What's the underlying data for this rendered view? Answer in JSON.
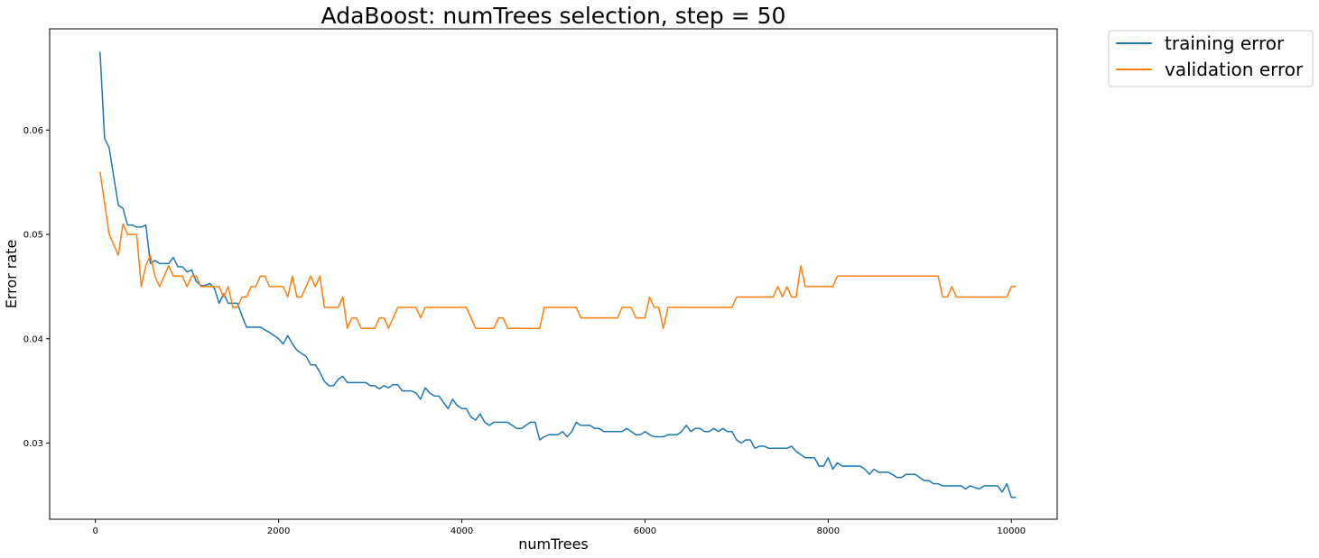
{
  "chart_data": {
    "type": "line",
    "title": "AdaBoost: numTrees selection, step = 50",
    "xlabel": "numTrees",
    "ylabel": "Error rate",
    "xlim": [
      -500,
      10500
    ],
    "ylim": [
      0.0227,
      0.0697
    ],
    "xticks": [
      0,
      2000,
      4000,
      6000,
      8000,
      10000
    ],
    "yticks": [
      0.03,
      0.04,
      0.05,
      0.06
    ],
    "xtick_labels": [
      "0",
      "2000",
      "4000",
      "6000",
      "8000",
      "10000"
    ],
    "ytick_labels": [
      "0.03",
      "0.04",
      "0.05",
      "0.06"
    ],
    "grid": false,
    "legend_position": "outside-top-right",
    "series": [
      {
        "name": "training error",
        "color": "#1f77b4",
        "points": [
          [
            50,
            0.0675
          ],
          [
            100,
            0.0592
          ],
          [
            150,
            0.0583
          ],
          [
            200,
            0.0555
          ],
          [
            250,
            0.0528
          ],
          [
            300,
            0.0525
          ],
          [
            350,
            0.0509
          ],
          [
            400,
            0.0509
          ],
          [
            450,
            0.0507
          ],
          [
            500,
            0.0507
          ],
          [
            550,
            0.0509
          ],
          [
            600,
            0.0472
          ],
          [
            650,
            0.0475
          ],
          [
            700,
            0.0472
          ],
          [
            800,
            0.0472
          ],
          [
            850,
            0.0478
          ],
          [
            900,
            0.0469
          ],
          [
            950,
            0.0469
          ],
          [
            1000,
            0.0464
          ],
          [
            1050,
            0.0466
          ],
          [
            1100,
            0.0455
          ],
          [
            1150,
            0.0451
          ],
          [
            1200,
            0.0451
          ],
          [
            1250,
            0.0453
          ],
          [
            1300,
            0.0448
          ],
          [
            1350,
            0.0434
          ],
          [
            1400,
            0.0443
          ],
          [
            1450,
            0.0434
          ],
          [
            1500,
            0.0434
          ],
          [
            1550,
            0.0434
          ],
          [
            1600,
            0.0422
          ],
          [
            1650,
            0.0411
          ],
          [
            1700,
            0.0411
          ],
          [
            1800,
            0.0411
          ],
          [
            1900,
            0.0406
          ],
          [
            2000,
            0.04
          ],
          [
            2050,
            0.0395
          ],
          [
            2100,
            0.0403
          ],
          [
            2150,
            0.0395
          ],
          [
            2200,
            0.0389
          ],
          [
            2250,
            0.0386
          ],
          [
            2300,
            0.0383
          ],
          [
            2350,
            0.0375
          ],
          [
            2400,
            0.0375
          ],
          [
            2450,
            0.0368
          ],
          [
            2500,
            0.0359
          ],
          [
            2550,
            0.0355
          ],
          [
            2600,
            0.0355
          ],
          [
            2650,
            0.0361
          ],
          [
            2700,
            0.0364
          ],
          [
            2750,
            0.0358
          ],
          [
            2800,
            0.0358
          ],
          [
            2950,
            0.0358
          ],
          [
            3000,
            0.0355
          ],
          [
            3050,
            0.0355
          ],
          [
            3100,
            0.0352
          ],
          [
            3150,
            0.0355
          ],
          [
            3200,
            0.0353
          ],
          [
            3250,
            0.0356
          ],
          [
            3300,
            0.0356
          ],
          [
            3350,
            0.035
          ],
          [
            3450,
            0.035
          ],
          [
            3500,
            0.0348
          ],
          [
            3550,
            0.0342
          ],
          [
            3600,
            0.0353
          ],
          [
            3650,
            0.0348
          ],
          [
            3700,
            0.0345
          ],
          [
            3750,
            0.0345
          ],
          [
            3800,
            0.0339
          ],
          [
            3850,
            0.0333
          ],
          [
            3900,
            0.0342
          ],
          [
            3950,
            0.0336
          ],
          [
            4000,
            0.0333
          ],
          [
            4050,
            0.0333
          ],
          [
            4100,
            0.0325
          ],
          [
            4150,
            0.0322
          ],
          [
            4200,
            0.0328
          ],
          [
            4250,
            0.032
          ],
          [
            4300,
            0.0317
          ],
          [
            4350,
            0.032
          ],
          [
            4500,
            0.032
          ],
          [
            4600,
            0.0314
          ],
          [
            4650,
            0.0314
          ],
          [
            4700,
            0.0317
          ],
          [
            4750,
            0.032
          ],
          [
            4800,
            0.032
          ],
          [
            4850,
            0.0303
          ],
          [
            4900,
            0.0306
          ],
          [
            4950,
            0.0308
          ],
          [
            5050,
            0.0308
          ],
          [
            5100,
            0.0311
          ],
          [
            5150,
            0.0306
          ],
          [
            5200,
            0.0311
          ],
          [
            5250,
            0.032
          ],
          [
            5300,
            0.0317
          ],
          [
            5400,
            0.0317
          ],
          [
            5450,
            0.0314
          ],
          [
            5500,
            0.0314
          ],
          [
            5550,
            0.0311
          ],
          [
            5750,
            0.0311
          ],
          [
            5800,
            0.0314
          ],
          [
            5850,
            0.0311
          ],
          [
            5900,
            0.0308
          ],
          [
            5950,
            0.0308
          ],
          [
            6000,
            0.0311
          ],
          [
            6050,
            0.0308
          ],
          [
            6100,
            0.0306
          ],
          [
            6200,
            0.0306
          ],
          [
            6250,
            0.0308
          ],
          [
            6350,
            0.0308
          ],
          [
            6400,
            0.0311
          ],
          [
            6450,
            0.0317
          ],
          [
            6500,
            0.0311
          ],
          [
            6550,
            0.0314
          ],
          [
            6600,
            0.0314
          ],
          [
            6650,
            0.0311
          ],
          [
            6700,
            0.0311
          ],
          [
            6750,
            0.0314
          ],
          [
            6800,
            0.0311
          ],
          [
            6850,
            0.0314
          ],
          [
            6900,
            0.0311
          ],
          [
            6950,
            0.0311
          ],
          [
            7000,
            0.0303
          ],
          [
            7050,
            0.03
          ],
          [
            7100,
            0.0303
          ],
          [
            7150,
            0.0303
          ],
          [
            7200,
            0.0295
          ],
          [
            7250,
            0.0297
          ],
          [
            7300,
            0.0297
          ],
          [
            7350,
            0.0295
          ],
          [
            7550,
            0.0295
          ],
          [
            7600,
            0.0297
          ],
          [
            7650,
            0.0292
          ],
          [
            7700,
            0.0289
          ],
          [
            7750,
            0.0286
          ],
          [
            7850,
            0.0286
          ],
          [
            7900,
            0.0278
          ],
          [
            7950,
            0.0278
          ],
          [
            8000,
            0.0286
          ],
          [
            8050,
            0.0275
          ],
          [
            8100,
            0.0281
          ],
          [
            8150,
            0.0278
          ],
          [
            8350,
            0.0278
          ],
          [
            8400,
            0.0275
          ],
          [
            8450,
            0.027
          ],
          [
            8500,
            0.0275
          ],
          [
            8550,
            0.0272
          ],
          [
            8650,
            0.0272
          ],
          [
            8700,
            0.027
          ],
          [
            8750,
            0.0267
          ],
          [
            8800,
            0.0267
          ],
          [
            8850,
            0.027
          ],
          [
            8950,
            0.027
          ],
          [
            9000,
            0.0267
          ],
          [
            9050,
            0.0264
          ],
          [
            9100,
            0.0264
          ],
          [
            9150,
            0.0261
          ],
          [
            9200,
            0.0261
          ],
          [
            9250,
            0.0259
          ],
          [
            9450,
            0.0259
          ],
          [
            9500,
            0.0256
          ],
          [
            9550,
            0.0259
          ],
          [
            9650,
            0.0256
          ],
          [
            9700,
            0.0259
          ],
          [
            9850,
            0.0259
          ],
          [
            9900,
            0.0253
          ],
          [
            9950,
            0.0261
          ],
          [
            10000,
            0.0248
          ],
          [
            10050,
            0.0248
          ]
        ]
      },
      {
        "name": "validation error",
        "color": "#ff7f0e",
        "points": [
          [
            50,
            0.056
          ],
          [
            100,
            0.053
          ],
          [
            150,
            0.05
          ],
          [
            200,
            0.049
          ],
          [
            250,
            0.048
          ],
          [
            300,
            0.051
          ],
          [
            350,
            0.05
          ],
          [
            450,
            0.05
          ],
          [
            500,
            0.045
          ],
          [
            550,
            0.047
          ],
          [
            600,
            0.048
          ],
          [
            650,
            0.046
          ],
          [
            700,
            0.045
          ],
          [
            750,
            0.046
          ],
          [
            800,
            0.047
          ],
          [
            850,
            0.046
          ],
          [
            950,
            0.046
          ],
          [
            1000,
            0.045
          ],
          [
            1050,
            0.046
          ],
          [
            1100,
            0.046
          ],
          [
            1150,
            0.045
          ],
          [
            1350,
            0.045
          ],
          [
            1400,
            0.044
          ],
          [
            1450,
            0.045
          ],
          [
            1500,
            0.043
          ],
          [
            1550,
            0.043
          ],
          [
            1600,
            0.044
          ],
          [
            1650,
            0.044
          ],
          [
            1700,
            0.045
          ],
          [
            1750,
            0.045
          ],
          [
            1800,
            0.046
          ],
          [
            1850,
            0.046
          ],
          [
            1900,
            0.045
          ],
          [
            2050,
            0.045
          ],
          [
            2100,
            0.044
          ],
          [
            2150,
            0.046
          ],
          [
            2200,
            0.044
          ],
          [
            2250,
            0.044
          ],
          [
            2300,
            0.045
          ],
          [
            2350,
            0.046
          ],
          [
            2400,
            0.045
          ],
          [
            2450,
            0.046
          ],
          [
            2500,
            0.043
          ],
          [
            2650,
            0.043
          ],
          [
            2700,
            0.044
          ],
          [
            2750,
            0.041
          ],
          [
            2800,
            0.042
          ],
          [
            2850,
            0.042
          ],
          [
            2900,
            0.041
          ],
          [
            3050,
            0.041
          ],
          [
            3100,
            0.042
          ],
          [
            3150,
            0.042
          ],
          [
            3200,
            0.041
          ],
          [
            3250,
            0.042
          ],
          [
            3300,
            0.043
          ],
          [
            3500,
            0.043
          ],
          [
            3550,
            0.042
          ],
          [
            3600,
            0.043
          ],
          [
            4050,
            0.043
          ],
          [
            4100,
            0.042
          ],
          [
            4150,
            0.041
          ],
          [
            4350,
            0.041
          ],
          [
            4400,
            0.042
          ],
          [
            4450,
            0.042
          ],
          [
            4500,
            0.041
          ],
          [
            4850,
            0.041
          ],
          [
            4900,
            0.043
          ],
          [
            5250,
            0.043
          ],
          [
            5300,
            0.042
          ],
          [
            5700,
            0.042
          ],
          [
            5750,
            0.043
          ],
          [
            5850,
            0.043
          ],
          [
            5900,
            0.042
          ],
          [
            6000,
            0.042
          ],
          [
            6050,
            0.044
          ],
          [
            6100,
            0.043
          ],
          [
            6150,
            0.043
          ],
          [
            6200,
            0.041
          ],
          [
            6250,
            0.043
          ],
          [
            6950,
            0.043
          ],
          [
            7000,
            0.044
          ],
          [
            7400,
            0.044
          ],
          [
            7450,
            0.045
          ],
          [
            7500,
            0.044
          ],
          [
            7550,
            0.045
          ],
          [
            7600,
            0.044
          ],
          [
            7650,
            0.044
          ],
          [
            7700,
            0.047
          ],
          [
            7750,
            0.045
          ],
          [
            8050,
            0.045
          ],
          [
            8100,
            0.046
          ],
          [
            9200,
            0.046
          ],
          [
            9250,
            0.044
          ],
          [
            9300,
            0.044
          ],
          [
            9350,
            0.045
          ],
          [
            9400,
            0.044
          ],
          [
            9950,
            0.044
          ],
          [
            10000,
            0.045
          ],
          [
            10050,
            0.045
          ]
        ]
      }
    ]
  }
}
